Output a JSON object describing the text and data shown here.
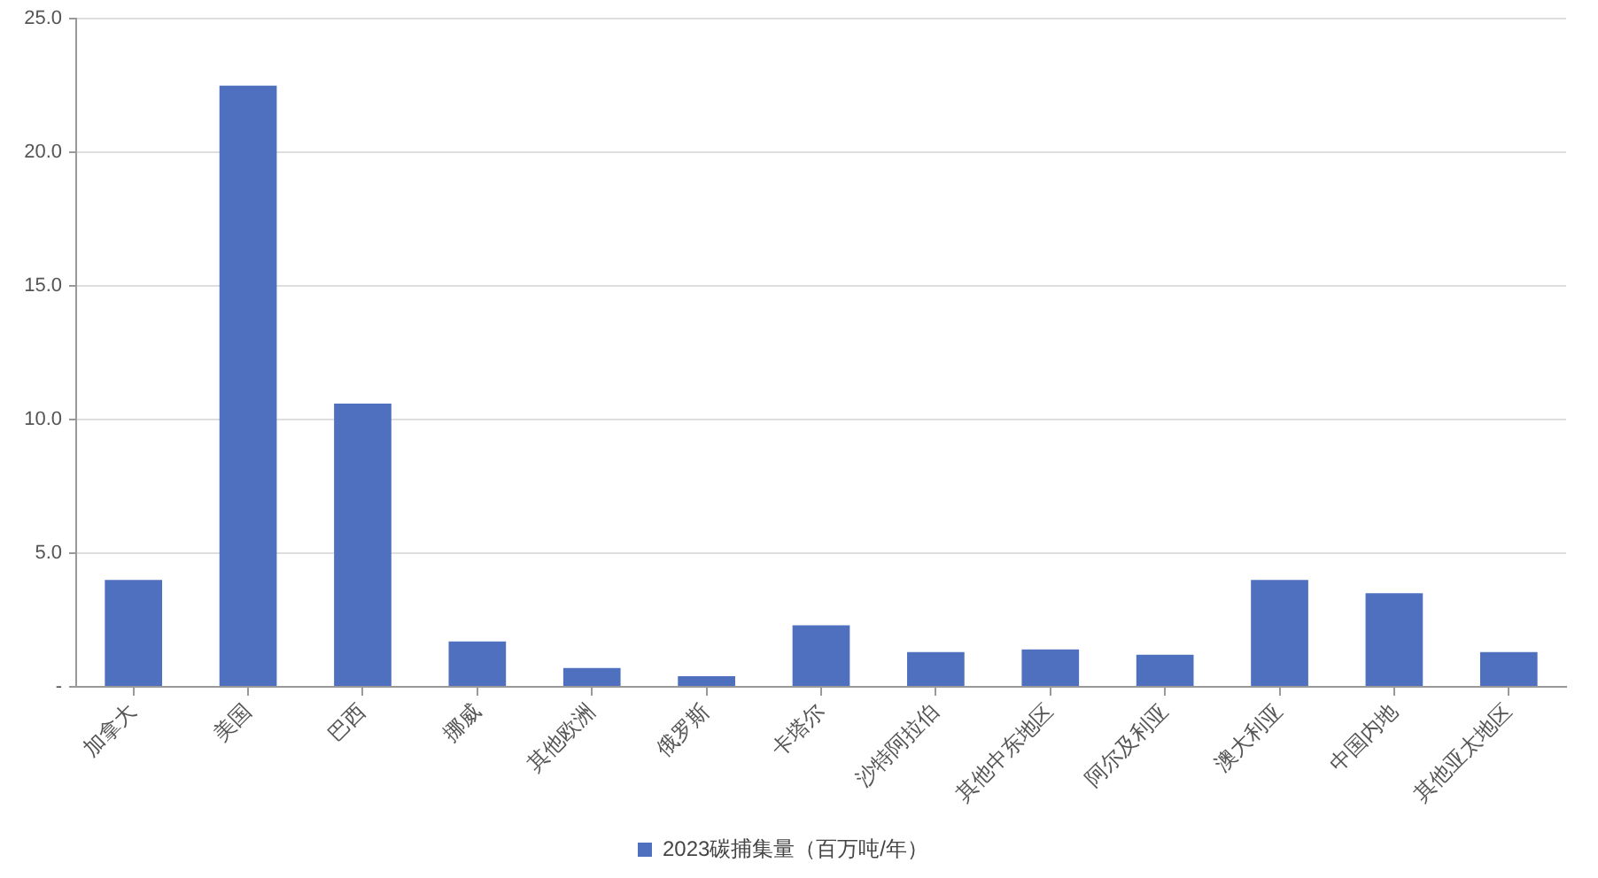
{
  "chart_data": {
    "type": "bar",
    "categories": [
      "加拿大",
      "美国",
      "巴西",
      "挪威",
      "其他欧洲",
      "俄罗斯",
      "卡塔尔",
      "沙特阿拉伯",
      "其他中东地区",
      "阿尔及利亚",
      "澳大利亚",
      "中国内地",
      "其他亚太地区"
    ],
    "series": [
      {
        "name": "2023碳捕集量（百万吨/年）",
        "color": "#4f70bf",
        "values": [
          4.0,
          22.5,
          10.6,
          1.7,
          0.7,
          0.4,
          2.3,
          1.3,
          1.4,
          1.2,
          4.0,
          3.5,
          1.3
        ]
      }
    ],
    "ylim": [
      0,
      25
    ],
    "yticks": [
      {
        "value": 0,
        "label": "-"
      },
      {
        "value": 5,
        "label": "5.0"
      },
      {
        "value": 10,
        "label": "10.0"
      },
      {
        "value": 15,
        "label": "15.0"
      },
      {
        "value": 20,
        "label": "20.0"
      },
      {
        "value": 25,
        "label": "25.0"
      }
    ],
    "grid": "y",
    "legend": "bottom"
  }
}
